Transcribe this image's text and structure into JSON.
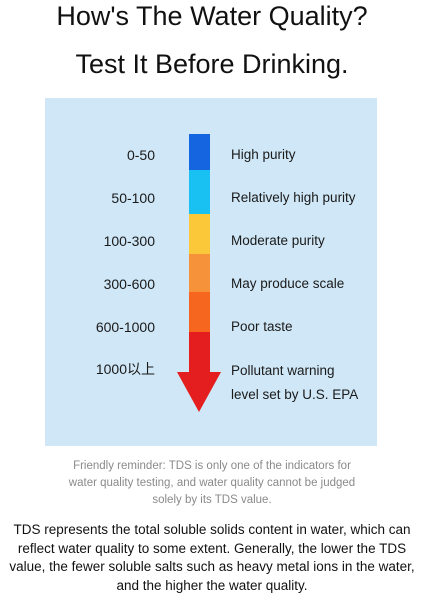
{
  "title": {
    "line1": "How's The Water Quality?",
    "line2": "Test It Before Drinking."
  },
  "scale": {
    "rows": [
      {
        "range": "0-50",
        "label": "High purity",
        "color": "#1565e0"
      },
      {
        "range": "50-100",
        "label": "Relatively high purity",
        "color": "#19c1f2"
      },
      {
        "range": "100-300",
        "label": "Moderate purity",
        "color": "#fbc83a"
      },
      {
        "range": "300-600",
        "label": "May produce scale",
        "color": "#f6933a"
      },
      {
        "range": "600-1000",
        "label": "Poor taste",
        "color": "#f6661e"
      },
      {
        "range": "1000以上",
        "label": "Pollutant warning",
        "label2": "level set by U.S. EPA",
        "color": "#e41e1e"
      }
    ],
    "arrow_color": "#e41e1e",
    "panel_color": "#cfe7f6"
  },
  "reminder": {
    "line1": "Friendly reminder: TDS is only one of the indicators for",
    "line2": "water quality testing, and water quality cannot be judged",
    "line3": "solely by its TDS value."
  },
  "description": {
    "line1": "TDS represents the total soluble solids content in water, which can",
    "line2": "reflect water quality to some extent. Generally, the lower the TDS",
    "line3": "value, the fewer soluble salts such as heavy metal ions in the water,",
    "line4": "and the higher the water quality."
  }
}
